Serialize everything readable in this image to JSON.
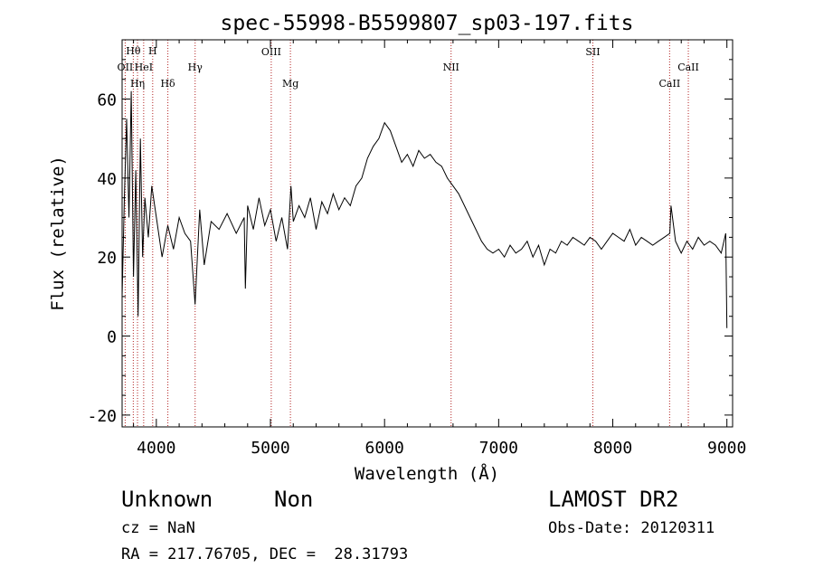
{
  "chart_data": {
    "type": "line",
    "title": "spec-55998-B5599807_sp03-197.fits",
    "xlabel": "Wavelength (Å)",
    "ylabel": "Flux (relative)",
    "xlim": [
      3700,
      9050
    ],
    "ylim": [
      -23,
      75
    ],
    "x_ticks": [
      4000,
      5000,
      6000,
      7000,
      8000,
      9000
    ],
    "y_ticks": [
      -20,
      0,
      20,
      40,
      60
    ],
    "grid": false,
    "line_color": "#000000",
    "marker_color": "#b22222",
    "spectrum": {
      "x": [
        3700,
        3720,
        3740,
        3760,
        3780,
        3800,
        3820,
        3840,
        3860,
        3880,
        3900,
        3930,
        3960,
        4000,
        4050,
        4100,
        4150,
        4200,
        4250,
        4300,
        4340,
        4380,
        4420,
        4480,
        4550,
        4620,
        4700,
        4770,
        4780,
        4800,
        4850,
        4900,
        4950,
        5000,
        5050,
        5100,
        5150,
        5180,
        5200,
        5250,
        5300,
        5350,
        5400,
        5450,
        5500,
        5550,
        5600,
        5650,
        5700,
        5750,
        5800,
        5850,
        5900,
        5950,
        6000,
        6050,
        6100,
        6150,
        6200,
        6250,
        6300,
        6350,
        6400,
        6450,
        6500,
        6550,
        6600,
        6650,
        6700,
        6750,
        6800,
        6850,
        6900,
        6950,
        7000,
        7050,
        7100,
        7150,
        7200,
        7250,
        7300,
        7350,
        7400,
        7450,
        7500,
        7550,
        7600,
        7650,
        7700,
        7750,
        7800,
        7850,
        7900,
        7950,
        8000,
        8050,
        8100,
        8150,
        8200,
        8250,
        8300,
        8350,
        8400,
        8450,
        8500,
        8510,
        8550,
        8600,
        8650,
        8700,
        8750,
        8800,
        8850,
        8900,
        8950,
        8990,
        9000
      ],
      "y": [
        10,
        35,
        55,
        30,
        62,
        15,
        42,
        5,
        50,
        20,
        35,
        25,
        38,
        30,
        20,
        28,
        22,
        30,
        26,
        24,
        8,
        32,
        18,
        29,
        27,
        31,
        26,
        30,
        12,
        33,
        27,
        35,
        28,
        32,
        24,
        30,
        22,
        38,
        29,
        33,
        30,
        35,
        27,
        34,
        31,
        36,
        32,
        35,
        33,
        38,
        40,
        45,
        48,
        50,
        54,
        52,
        48,
        44,
        46,
        43,
        47,
        45,
        46,
        44,
        43,
        40,
        38,
        36,
        33,
        30,
        27,
        24,
        22,
        21,
        22,
        20,
        23,
        21,
        22,
        24,
        20,
        23,
        18,
        22,
        21,
        24,
        23,
        25,
        24,
        23,
        25,
        24,
        22,
        24,
        26,
        25,
        24,
        27,
        23,
        25,
        24,
        23,
        24,
        25,
        26,
        33,
        24,
        21,
        24,
        22,
        25,
        23,
        24,
        23,
        21,
        26,
        2
      ]
    },
    "lines": [
      {
        "label": "OII",
        "wave": 3727,
        "row": 3
      },
      {
        "label": "Hθ",
        "wave": 3798,
        "row": 1
      },
      {
        "label": "Hη",
        "wave": 3835,
        "row": 4
      },
      {
        "label": "HeI",
        "wave": 3889,
        "row": 3
      },
      {
        "label": "H",
        "wave": 3968,
        "row": 1
      },
      {
        "label": "Hδ",
        "wave": 4101,
        "row": 4
      },
      {
        "label": "Hγ",
        "wave": 4340,
        "row": 3
      },
      {
        "label": "OIII",
        "wave": 5007,
        "row": 2
      },
      {
        "label": "Mg",
        "wave": 5175,
        "row": 4
      },
      {
        "label": "NII",
        "wave": 6583,
        "row": 3
      },
      {
        "label": "SII",
        "wave": 7825,
        "row": 2
      },
      {
        "label": "CaII",
        "wave": 8498,
        "row": 4
      },
      {
        "label": "CaII",
        "wave": 8662,
        "row": 3
      }
    ]
  },
  "info": {
    "class": "Unknown",
    "subclass": "Non",
    "survey": "LAMOST DR2",
    "cz": "cz = NaN",
    "obs_date": "Obs-Date: 20120311",
    "coords": "RA = 217.76705, DEC =  28.31793"
  }
}
